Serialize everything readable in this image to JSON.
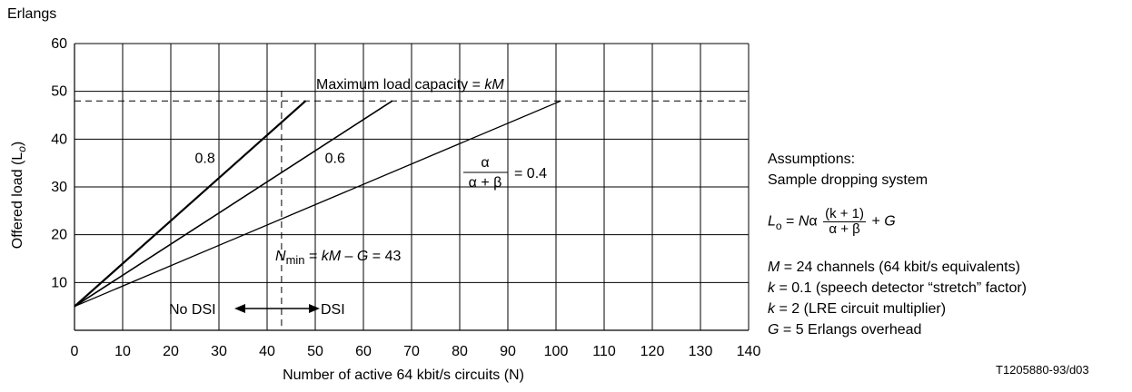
{
  "chart_data": {
    "type": "line",
    "ylabel_top": "Erlangs",
    "ylabel": "Offered load (L",
    "ylabel_sub": "o",
    "ylabel_close": ")",
    "xlabel": "Number of active 64 kbit/s circuits (N)",
    "xlim": [
      0,
      140
    ],
    "ylim": [
      0,
      60
    ],
    "xticks": [
      0,
      10,
      20,
      30,
      40,
      50,
      60,
      70,
      80,
      90,
      100,
      110,
      120,
      130,
      140
    ],
    "yticks": [
      10,
      20,
      30,
      40,
      50,
      60
    ],
    "grid": true,
    "series": [
      {
        "name": "0.8",
        "x": [
          0,
          48
        ],
        "y": [
          5,
          48
        ]
      },
      {
        "name": "0.6",
        "x": [
          0,
          66
        ],
        "y": [
          5,
          48
        ]
      },
      {
        "name": "0.4",
        "x": [
          0,
          101
        ],
        "y": [
          5,
          48
        ]
      }
    ],
    "max_load": 48,
    "n_min": 43,
    "annotations": {
      "max_load_text": "Maximum load capacity = ",
      "max_load_var": "kM",
      "nmin_N": "N",
      "nmin_sub": "min",
      "nmin_eq": " = ",
      "nmin_kM": "kM",
      "nmin_minus": " – ",
      "nmin_G": "G",
      "nmin_val": " = 43",
      "no_dsi": "No DSI",
      "dsi": "DSI",
      "frac_num": "α",
      "frac_den": "α + β",
      "frac_val": "= 0.4"
    }
  },
  "assumptions": {
    "title": "Assumptions:",
    "subtitle": "Sample dropping system",
    "formula": {
      "L": "L",
      "sub": "o",
      "eq": " = ",
      "N": "N",
      "alpha": "α",
      "num": "(k + 1)",
      "den": "α + β",
      "plus": " + ",
      "G": "G"
    },
    "lines": [
      {
        "var": "M",
        "text": " = 24 channels (64 kbit/s equivalents)"
      },
      {
        "var": "k",
        "text": " = 0.1 (speech detector “stretch” factor)"
      },
      {
        "var": "k",
        "text": " = 2 (LRE circuit multiplier)"
      },
      {
        "var": "G",
        "text": " = 5 Erlangs overhead"
      }
    ]
  },
  "figure_id": "T1205880-93/d03"
}
